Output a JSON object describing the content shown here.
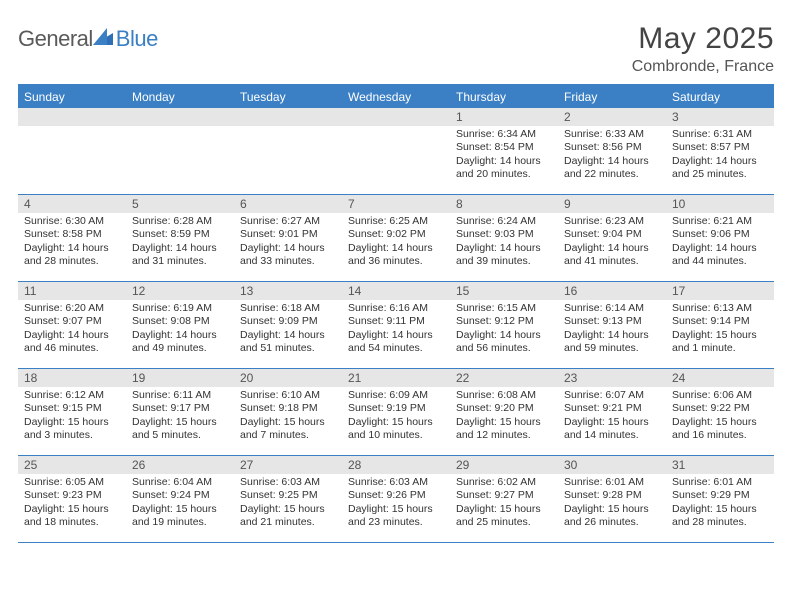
{
  "brand": {
    "part1": "General",
    "part2": "Blue"
  },
  "title": "May 2025",
  "location": "Combronde, France",
  "colors": {
    "accent": "#3b7fc4",
    "header_text": "#ffffff",
    "daynum_bg": "#e6e6e6",
    "text": "#333333",
    "background": "#ffffff"
  },
  "day_names": [
    "Sunday",
    "Monday",
    "Tuesday",
    "Wednesday",
    "Thursday",
    "Friday",
    "Saturday"
  ],
  "weeks": [
    [
      {
        "n": "",
        "sr": "",
        "ss": "",
        "dl": ""
      },
      {
        "n": "",
        "sr": "",
        "ss": "",
        "dl": ""
      },
      {
        "n": "",
        "sr": "",
        "ss": "",
        "dl": ""
      },
      {
        "n": "",
        "sr": "",
        "ss": "",
        "dl": ""
      },
      {
        "n": "1",
        "sr": "Sunrise: 6:34 AM",
        "ss": "Sunset: 8:54 PM",
        "dl": "Daylight: 14 hours and 20 minutes."
      },
      {
        "n": "2",
        "sr": "Sunrise: 6:33 AM",
        "ss": "Sunset: 8:56 PM",
        "dl": "Daylight: 14 hours and 22 minutes."
      },
      {
        "n": "3",
        "sr": "Sunrise: 6:31 AM",
        "ss": "Sunset: 8:57 PM",
        "dl": "Daylight: 14 hours and 25 minutes."
      }
    ],
    [
      {
        "n": "4",
        "sr": "Sunrise: 6:30 AM",
        "ss": "Sunset: 8:58 PM",
        "dl": "Daylight: 14 hours and 28 minutes."
      },
      {
        "n": "5",
        "sr": "Sunrise: 6:28 AM",
        "ss": "Sunset: 8:59 PM",
        "dl": "Daylight: 14 hours and 31 minutes."
      },
      {
        "n": "6",
        "sr": "Sunrise: 6:27 AM",
        "ss": "Sunset: 9:01 PM",
        "dl": "Daylight: 14 hours and 33 minutes."
      },
      {
        "n": "7",
        "sr": "Sunrise: 6:25 AM",
        "ss": "Sunset: 9:02 PM",
        "dl": "Daylight: 14 hours and 36 minutes."
      },
      {
        "n": "8",
        "sr": "Sunrise: 6:24 AM",
        "ss": "Sunset: 9:03 PM",
        "dl": "Daylight: 14 hours and 39 minutes."
      },
      {
        "n": "9",
        "sr": "Sunrise: 6:23 AM",
        "ss": "Sunset: 9:04 PM",
        "dl": "Daylight: 14 hours and 41 minutes."
      },
      {
        "n": "10",
        "sr": "Sunrise: 6:21 AM",
        "ss": "Sunset: 9:06 PM",
        "dl": "Daylight: 14 hours and 44 minutes."
      }
    ],
    [
      {
        "n": "11",
        "sr": "Sunrise: 6:20 AM",
        "ss": "Sunset: 9:07 PM",
        "dl": "Daylight: 14 hours and 46 minutes."
      },
      {
        "n": "12",
        "sr": "Sunrise: 6:19 AM",
        "ss": "Sunset: 9:08 PM",
        "dl": "Daylight: 14 hours and 49 minutes."
      },
      {
        "n": "13",
        "sr": "Sunrise: 6:18 AM",
        "ss": "Sunset: 9:09 PM",
        "dl": "Daylight: 14 hours and 51 minutes."
      },
      {
        "n": "14",
        "sr": "Sunrise: 6:16 AM",
        "ss": "Sunset: 9:11 PM",
        "dl": "Daylight: 14 hours and 54 minutes."
      },
      {
        "n": "15",
        "sr": "Sunrise: 6:15 AM",
        "ss": "Sunset: 9:12 PM",
        "dl": "Daylight: 14 hours and 56 minutes."
      },
      {
        "n": "16",
        "sr": "Sunrise: 6:14 AM",
        "ss": "Sunset: 9:13 PM",
        "dl": "Daylight: 14 hours and 59 minutes."
      },
      {
        "n": "17",
        "sr": "Sunrise: 6:13 AM",
        "ss": "Sunset: 9:14 PM",
        "dl": "Daylight: 15 hours and 1 minute."
      }
    ],
    [
      {
        "n": "18",
        "sr": "Sunrise: 6:12 AM",
        "ss": "Sunset: 9:15 PM",
        "dl": "Daylight: 15 hours and 3 minutes."
      },
      {
        "n": "19",
        "sr": "Sunrise: 6:11 AM",
        "ss": "Sunset: 9:17 PM",
        "dl": "Daylight: 15 hours and 5 minutes."
      },
      {
        "n": "20",
        "sr": "Sunrise: 6:10 AM",
        "ss": "Sunset: 9:18 PM",
        "dl": "Daylight: 15 hours and 7 minutes."
      },
      {
        "n": "21",
        "sr": "Sunrise: 6:09 AM",
        "ss": "Sunset: 9:19 PM",
        "dl": "Daylight: 15 hours and 10 minutes."
      },
      {
        "n": "22",
        "sr": "Sunrise: 6:08 AM",
        "ss": "Sunset: 9:20 PM",
        "dl": "Daylight: 15 hours and 12 minutes."
      },
      {
        "n": "23",
        "sr": "Sunrise: 6:07 AM",
        "ss": "Sunset: 9:21 PM",
        "dl": "Daylight: 15 hours and 14 minutes."
      },
      {
        "n": "24",
        "sr": "Sunrise: 6:06 AM",
        "ss": "Sunset: 9:22 PM",
        "dl": "Daylight: 15 hours and 16 minutes."
      }
    ],
    [
      {
        "n": "25",
        "sr": "Sunrise: 6:05 AM",
        "ss": "Sunset: 9:23 PM",
        "dl": "Daylight: 15 hours and 18 minutes."
      },
      {
        "n": "26",
        "sr": "Sunrise: 6:04 AM",
        "ss": "Sunset: 9:24 PM",
        "dl": "Daylight: 15 hours and 19 minutes."
      },
      {
        "n": "27",
        "sr": "Sunrise: 6:03 AM",
        "ss": "Sunset: 9:25 PM",
        "dl": "Daylight: 15 hours and 21 minutes."
      },
      {
        "n": "28",
        "sr": "Sunrise: 6:03 AM",
        "ss": "Sunset: 9:26 PM",
        "dl": "Daylight: 15 hours and 23 minutes."
      },
      {
        "n": "29",
        "sr": "Sunrise: 6:02 AM",
        "ss": "Sunset: 9:27 PM",
        "dl": "Daylight: 15 hours and 25 minutes."
      },
      {
        "n": "30",
        "sr": "Sunrise: 6:01 AM",
        "ss": "Sunset: 9:28 PM",
        "dl": "Daylight: 15 hours and 26 minutes."
      },
      {
        "n": "31",
        "sr": "Sunrise: 6:01 AM",
        "ss": "Sunset: 9:29 PM",
        "dl": "Daylight: 15 hours and 28 minutes."
      }
    ]
  ]
}
